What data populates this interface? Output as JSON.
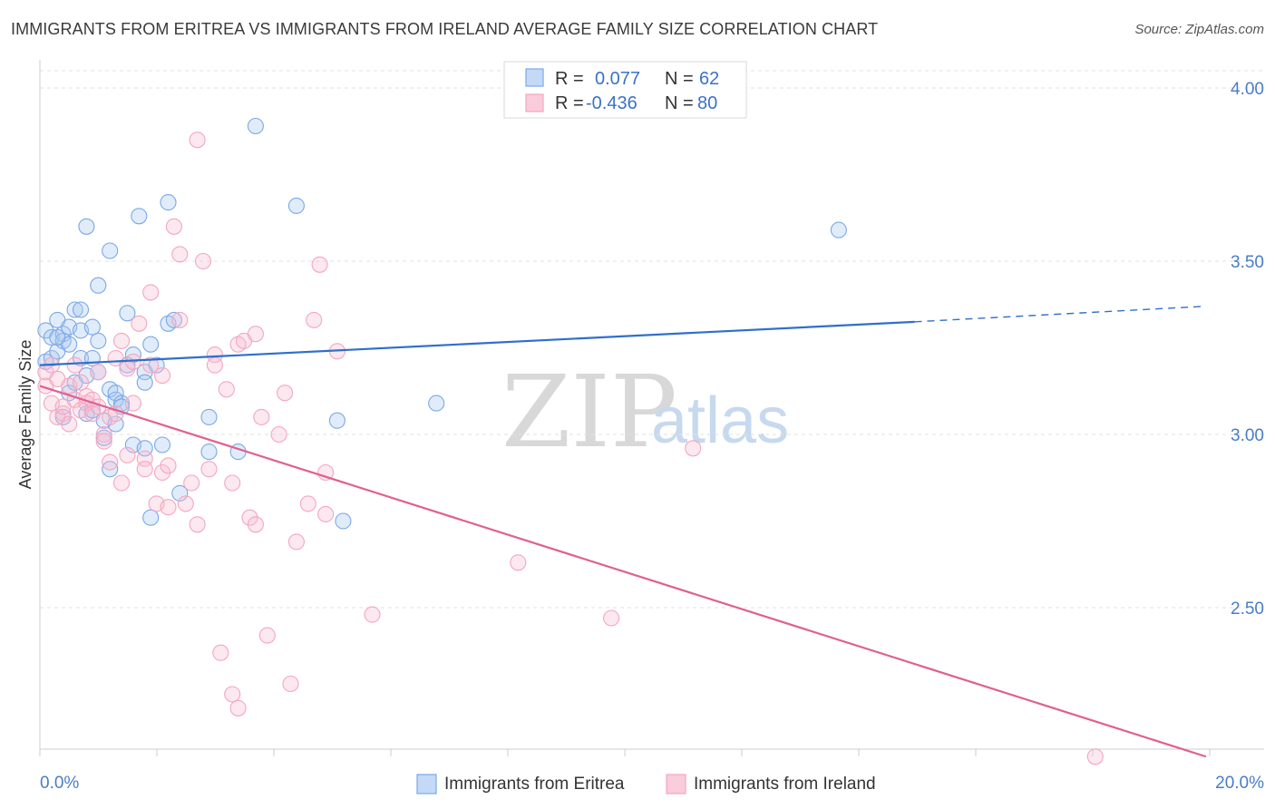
{
  "header": {
    "title": "IMMIGRANTS FROM ERITREA VS IMMIGRANTS FROM IRELAND AVERAGE FAMILY SIZE CORRELATION CHART",
    "source": "Source: ZipAtlas.com"
  },
  "watermark": {
    "zip": "ZIP",
    "atlas": "atlas"
  },
  "legend": {
    "eritrea": {
      "r_label": "R =",
      "r_value": "0.077",
      "n_label": "N =",
      "n_value": "62"
    },
    "ireland": {
      "r_label": "R =",
      "r_value": "-0.436",
      "n_label": "N =",
      "n_value": "80"
    }
  },
  "chart_data": {
    "type": "scatter",
    "title": "IMMIGRANTS FROM ERITREA VS IMMIGRANTS FROM IRELAND AVERAGE FAMILY SIZE CORRELATION CHART",
    "xlabel": "",
    "ylabel": "Average Family Size",
    "xlim": [
      0,
      20
    ],
    "ylim": [
      2.05,
      4.08
    ],
    "x_tick_labels": [
      "0.0%",
      "20.0%"
    ],
    "y_ticks": [
      2.5,
      3.0,
      3.5,
      4.0
    ],
    "y_tick_labels": [
      "2.50",
      "3.00",
      "3.50",
      "4.00"
    ],
    "grid": true,
    "series": [
      {
        "name": "Immigrants from Eritrea",
        "color": "#7aa8e8",
        "line_color": "#2f6fcc",
        "trend": {
          "x0": 0,
          "y0": 3.2,
          "x1": 15,
          "y1": 3.325,
          "dash_to_x": 20,
          "dash_to_y": 3.37
        },
        "points": [
          [
            0.1,
            3.21
          ],
          [
            0.1,
            3.3
          ],
          [
            0.2,
            3.28
          ],
          [
            0.2,
            3.22
          ],
          [
            0.3,
            3.33
          ],
          [
            0.3,
            3.24
          ],
          [
            0.4,
            3.29
          ],
          [
            0.4,
            3.27
          ],
          [
            0.4,
            3.05
          ],
          [
            0.5,
            3.31
          ],
          [
            0.5,
            3.26
          ],
          [
            0.5,
            3.12
          ],
          [
            0.6,
            3.36
          ],
          [
            0.6,
            3.15
          ],
          [
            0.7,
            3.36
          ],
          [
            0.7,
            3.22
          ],
          [
            0.7,
            3.3
          ],
          [
            0.8,
            3.6
          ],
          [
            0.8,
            3.06
          ],
          [
            0.8,
            3.17
          ],
          [
            0.9,
            3.31
          ],
          [
            0.9,
            3.22
          ],
          [
            0.9,
            3.07
          ],
          [
            1.0,
            3.43
          ],
          [
            1.0,
            3.18
          ],
          [
            1.0,
            3.27
          ],
          [
            1.1,
            3.04
          ],
          [
            1.1,
            2.99
          ],
          [
            1.2,
            3.53
          ],
          [
            1.2,
            3.13
          ],
          [
            1.2,
            2.9
          ],
          [
            1.3,
            3.1
          ],
          [
            1.3,
            3.03
          ],
          [
            1.3,
            3.12
          ],
          [
            1.4,
            3.09
          ],
          [
            1.4,
            3.08
          ],
          [
            1.5,
            3.35
          ],
          [
            1.5,
            3.2
          ],
          [
            1.6,
            3.23
          ],
          [
            1.6,
            2.97
          ],
          [
            1.7,
            3.63
          ],
          [
            1.8,
            2.96
          ],
          [
            1.8,
            3.18
          ],
          [
            1.8,
            3.15
          ],
          [
            1.9,
            3.26
          ],
          [
            1.9,
            2.76
          ],
          [
            2.0,
            3.2
          ],
          [
            2.1,
            2.97
          ],
          [
            2.2,
            3.32
          ],
          [
            2.2,
            3.67
          ],
          [
            2.3,
            3.33
          ],
          [
            2.4,
            2.83
          ],
          [
            2.9,
            3.05
          ],
          [
            2.9,
            2.95
          ],
          [
            3.4,
            2.95
          ],
          [
            3.7,
            3.89
          ],
          [
            4.4,
            3.66
          ],
          [
            5.1,
            3.04
          ],
          [
            5.2,
            2.75
          ],
          [
            6.8,
            3.09
          ],
          [
            13.7,
            3.59
          ],
          [
            0.3,
            3.28
          ]
        ]
      },
      {
        "name": "Immigrants from Ireland",
        "color": "#f4a6bf",
        "line_color": "#e0608e",
        "trend": {
          "x0": 0,
          "y0": 3.14,
          "x1": 20,
          "y1": 2.07
        },
        "points": [
          [
            0.1,
            3.18
          ],
          [
            0.1,
            3.14
          ],
          [
            0.2,
            3.2
          ],
          [
            0.2,
            3.09
          ],
          [
            0.3,
            3.05
          ],
          [
            0.3,
            3.16
          ],
          [
            0.4,
            3.06
          ],
          [
            0.4,
            3.08
          ],
          [
            0.5,
            3.14
          ],
          [
            0.5,
            3.03
          ],
          [
            0.6,
            3.2
          ],
          [
            0.6,
            3.1
          ],
          [
            0.7,
            3.07
          ],
          [
            0.7,
            3.15
          ],
          [
            0.8,
            3.09
          ],
          [
            0.8,
            3.11
          ],
          [
            0.9,
            3.1
          ],
          [
            0.9,
            3.06
          ],
          [
            1.0,
            3.18
          ],
          [
            1.0,
            3.08
          ],
          [
            1.1,
            3.0
          ],
          [
            1.1,
            2.98
          ],
          [
            1.2,
            3.05
          ],
          [
            1.2,
            2.92
          ],
          [
            1.3,
            3.06
          ],
          [
            1.3,
            3.22
          ],
          [
            1.4,
            2.86
          ],
          [
            1.4,
            3.27
          ],
          [
            1.5,
            3.19
          ],
          [
            1.5,
            2.94
          ],
          [
            1.6,
            3.21
          ],
          [
            1.6,
            3.09
          ],
          [
            1.7,
            3.32
          ],
          [
            1.8,
            2.93
          ],
          [
            1.8,
            2.9
          ],
          [
            1.9,
            3.41
          ],
          [
            1.9,
            3.2
          ],
          [
            2.0,
            2.8
          ],
          [
            2.1,
            3.17
          ],
          [
            2.1,
            2.89
          ],
          [
            2.2,
            2.79
          ],
          [
            2.2,
            2.91
          ],
          [
            2.3,
            3.6
          ],
          [
            2.4,
            3.52
          ],
          [
            2.4,
            3.33
          ],
          [
            2.5,
            2.8
          ],
          [
            2.6,
            2.86
          ],
          [
            2.7,
            2.74
          ],
          [
            2.7,
            3.85
          ],
          [
            2.8,
            3.5
          ],
          [
            2.9,
            2.9
          ],
          [
            3.0,
            3.23
          ],
          [
            3.0,
            3.2
          ],
          [
            3.1,
            2.37
          ],
          [
            3.2,
            3.13
          ],
          [
            3.3,
            2.86
          ],
          [
            3.3,
            2.25
          ],
          [
            3.4,
            3.26
          ],
          [
            3.4,
            2.21
          ],
          [
            3.5,
            3.27
          ],
          [
            3.6,
            2.76
          ],
          [
            3.7,
            2.74
          ],
          [
            3.7,
            3.29
          ],
          [
            3.8,
            3.05
          ],
          [
            3.9,
            2.42
          ],
          [
            4.1,
            3.0
          ],
          [
            4.2,
            3.12
          ],
          [
            4.3,
            2.28
          ],
          [
            4.4,
            2.69
          ],
          [
            4.6,
            2.8
          ],
          [
            4.7,
            3.33
          ],
          [
            4.8,
            3.49
          ],
          [
            4.9,
            2.77
          ],
          [
            4.9,
            2.89
          ],
          [
            5.1,
            3.24
          ],
          [
            5.7,
            2.48
          ],
          [
            8.2,
            2.63
          ],
          [
            9.8,
            2.47
          ],
          [
            11.2,
            2.96
          ],
          [
            18.1,
            2.07
          ]
        ]
      }
    ]
  },
  "bottom_legend": {
    "eritrea_label": "Immigrants from Eritrea",
    "ireland_label": "Immigrants from Ireland"
  }
}
